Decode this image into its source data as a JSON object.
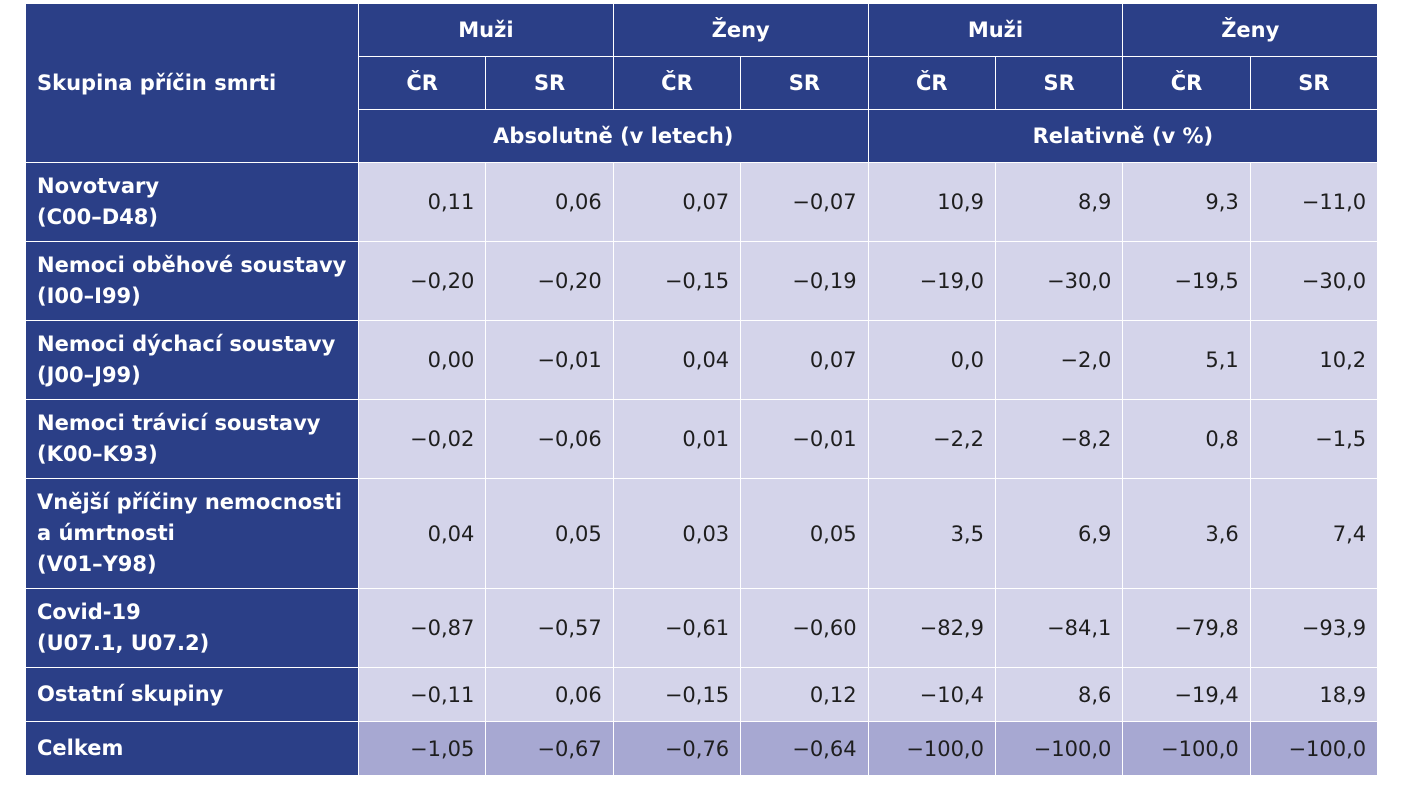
{
  "table": {
    "row_header": "Skupina příčin smrti",
    "top_headers": [
      "Muži",
      "Ženy",
      "Muži",
      "Ženy"
    ],
    "sub_headers": [
      "ČR",
      "SR",
      "ČR",
      "SR",
      "ČR",
      "SR",
      "ČR",
      "SR"
    ],
    "group_headers": [
      "Absolutně (v letech)",
      "Relativně (v %)"
    ],
    "rows": [
      {
        "label_lines": [
          "Novotvary",
          "(C00–D48)"
        ],
        "values": [
          "0,11",
          "0,06",
          "0,07",
          "−0,07",
          "10,9",
          "8,9",
          "9,3",
          "−11,0"
        ]
      },
      {
        "label_lines": [
          "Nemoci oběhové soustavy",
          "(I00–I99)"
        ],
        "values": [
          "−0,20",
          "−0,20",
          "−0,15",
          "−0,19",
          "−19,0",
          "−30,0",
          "−19,5",
          "−30,0"
        ]
      },
      {
        "label_lines": [
          "Nemoci dýchací soustavy",
          "(J00–J99)"
        ],
        "values": [
          "0,00",
          "−0,01",
          "0,04",
          "0,07",
          "0,0",
          "−2,0",
          "5,1",
          "10,2"
        ]
      },
      {
        "label_lines": [
          "Nemoci trávicí soustavy",
          "(K00–K93)"
        ],
        "values": [
          "−0,02",
          "−0,06",
          "0,01",
          "−0,01",
          "−2,2",
          "−8,2",
          "0,8",
          "−1,5"
        ]
      },
      {
        "label_lines": [
          "Vnější příčiny nemocnosti",
          "a úmrtnosti",
          "(V01–Y98)"
        ],
        "values": [
          "0,04",
          "0,05",
          "0,03",
          "0,05",
          "3,5",
          "6,9",
          "3,6",
          "7,4"
        ]
      },
      {
        "label_lines": [
          "Covid-19",
          "(U07.1, U07.2)"
        ],
        "values": [
          "−0,87",
          "−0,57",
          "−0,61",
          "−0,60",
          "−82,9",
          "−84,1",
          "−79,8",
          "−93,9"
        ]
      },
      {
        "label_lines": [
          "Ostatní skupiny"
        ],
        "values": [
          "−0,11",
          "0,06",
          "−0,15",
          "0,12",
          "−10,4",
          "8,6",
          "−19,4",
          "18,9"
        ]
      },
      {
        "label_lines": [
          "Celkem"
        ],
        "values": [
          "−1,05",
          "−0,67",
          "−0,76",
          "−0,64",
          "−100,0",
          "−100,0",
          "−100,0",
          "−100,0"
        ]
      }
    ]
  },
  "colors": {
    "header_bg": "#2b3f87",
    "cell_bg": "#d4d4ea",
    "total_bg": "#a7a8d2"
  }
}
